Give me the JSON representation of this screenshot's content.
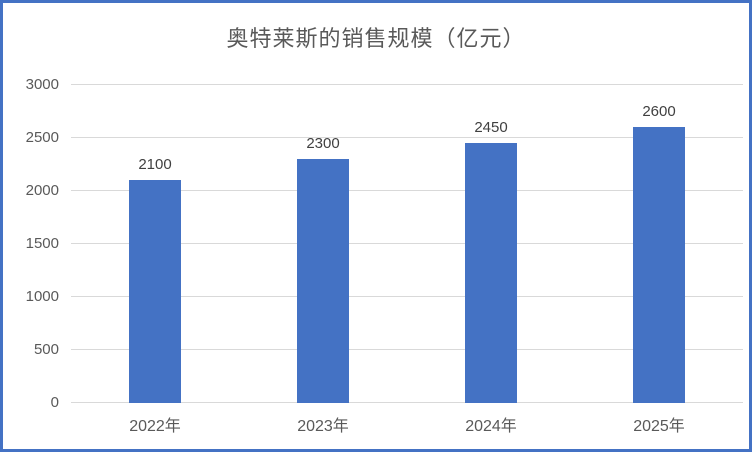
{
  "frame": {
    "border_color": "#4472C4",
    "background_color": "#FFFFFF"
  },
  "chart_data": {
    "type": "bar",
    "title": "奥特莱斯的销售规模（亿元）",
    "categories": [
      "2022年",
      "2023年",
      "2024年",
      "2025年"
    ],
    "values": [
      2100,
      2300,
      2450,
      2600
    ],
    "data_labels": [
      "2100",
      "2300",
      "2450",
      "2600"
    ],
    "xlabel": "",
    "ylabel": "",
    "ylim": [
      0,
      3000
    ],
    "yticks": [
      0,
      500,
      1000,
      1500,
      2000,
      2500,
      3000
    ],
    "grid": true,
    "legend": "none",
    "bar_color": "#4472C4",
    "gridline_color": "#D9D9D9",
    "title_color": "#595959",
    "axis_tick_color": "#595959",
    "data_label_color": "#404040"
  }
}
